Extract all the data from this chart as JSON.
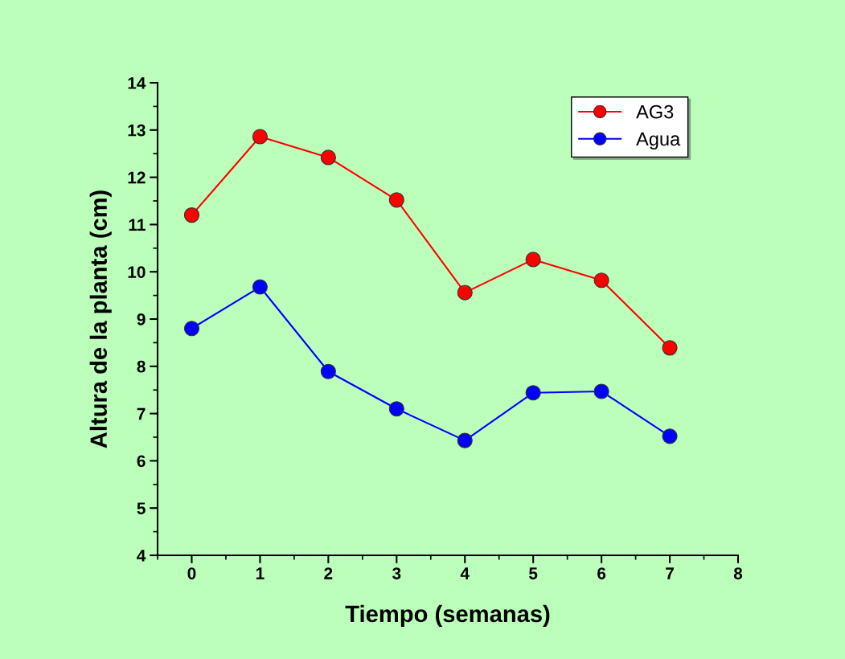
{
  "chart_data": {
    "type": "line",
    "xlabel": "Tiempo (semanas)",
    "ylabel": "Altura de la planta (cm)",
    "x": [
      0,
      1,
      2,
      3,
      4,
      5,
      6,
      7
    ],
    "series": [
      {
        "name": "AG3",
        "color": "#ff0000",
        "values": [
          11.2,
          12.86,
          12.42,
          11.52,
          9.56,
          10.26,
          9.82,
          8.39
        ]
      },
      {
        "name": "Agua",
        "color": "#0000ff",
        "values": [
          8.8,
          9.68,
          7.89,
          7.1,
          6.43,
          7.44,
          7.47,
          6.52
        ]
      }
    ],
    "xlim": [
      -0.5,
      8
    ],
    "xticks": [
      0,
      1,
      2,
      3,
      4,
      5,
      6,
      7,
      8
    ],
    "ylim": [
      4,
      14
    ],
    "yticks": [
      4,
      5,
      6,
      7,
      8,
      9,
      10,
      11,
      12,
      13,
      14
    ],
    "marker": "circle",
    "line_style": "solid",
    "legend": "top right",
    "grid": false
  }
}
